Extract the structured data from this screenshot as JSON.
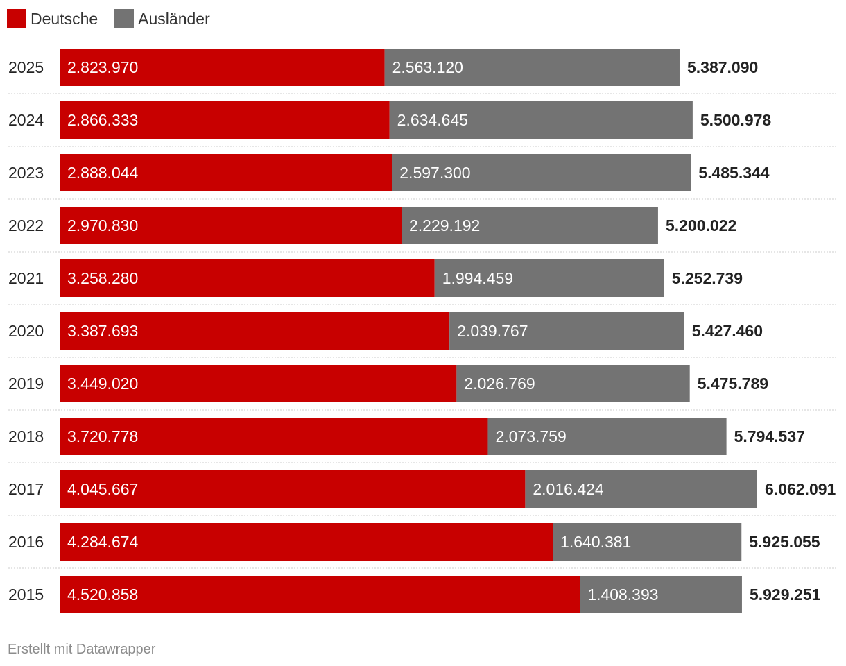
{
  "legend": {
    "items": [
      {
        "label": "Deutsche",
        "color": "#c80000"
      },
      {
        "label": "Ausländer",
        "color": "#737373"
      }
    ]
  },
  "chart_data": {
    "type": "bar",
    "orientation": "horizontal",
    "stacked": true,
    "categories": [
      "2025",
      "2024",
      "2023",
      "2022",
      "2021",
      "2020",
      "2019",
      "2018",
      "2017",
      "2016",
      "2015"
    ],
    "series": [
      {
        "name": "Deutsche",
        "color": "#c80000",
        "values": [
          2823970,
          2866333,
          2888044,
          2970830,
          3258280,
          3387693,
          3449020,
          3720778,
          4045667,
          4284674,
          4520858
        ],
        "labels": [
          "2.823.970",
          "2.866.333",
          "2.888.044",
          "2.970.830",
          "3.258.280",
          "3.387.693",
          "3.449.020",
          "3.720.778",
          "4.045.667",
          "4.284.674",
          "4.520.858"
        ]
      },
      {
        "name": "Ausländer",
        "color": "#737373",
        "values": [
          2563120,
          2634645,
          2597300,
          2229192,
          1994459,
          2039767,
          2026769,
          2073759,
          2016424,
          1640381,
          1408393
        ],
        "labels": [
          "2.563.120",
          "2.634.645",
          "2.597.300",
          "2.229.192",
          "1.994.459",
          "2.039.767",
          "2.026.769",
          "2.073.759",
          "2.016.424",
          "1.640.381",
          "1.408.393"
        ]
      }
    ],
    "totals": [
      5387090,
      5500978,
      5485344,
      5200022,
      5252739,
      5427460,
      5475789,
      5794537,
      6062091,
      5925055,
      5929251
    ],
    "total_labels": [
      "5.387.090",
      "5.500.978",
      "5.485.344",
      "5.200.022",
      "5.252.739",
      "5.427.460",
      "5.475.789",
      "5.794.537",
      "6.062.091",
      "5.925.055",
      "5.929.251"
    ],
    "xlim": [
      0,
      6062091
    ],
    "grid": false,
    "legend_position": "top-left"
  },
  "footer": {
    "credit": "Erstellt mit Datawrapper"
  }
}
